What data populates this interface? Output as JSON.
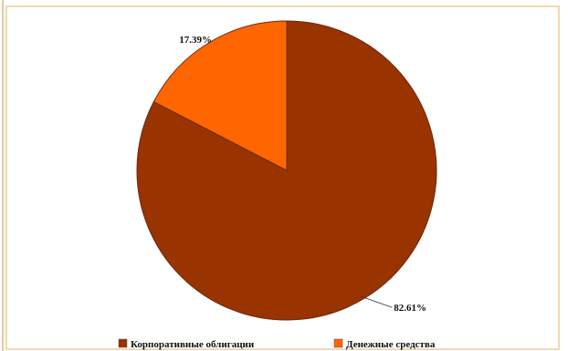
{
  "chart_data": {
    "type": "pie",
    "title": "",
    "slices": [
      {
        "label": "Корпоративные облигации",
        "value": 82.61,
        "display": "82.61%",
        "color": "#993300"
      },
      {
        "label": "Денежные средства",
        "value": 17.39,
        "display": "17.39%",
        "color": "#ff6600"
      }
    ],
    "legend_position": "bottom"
  }
}
